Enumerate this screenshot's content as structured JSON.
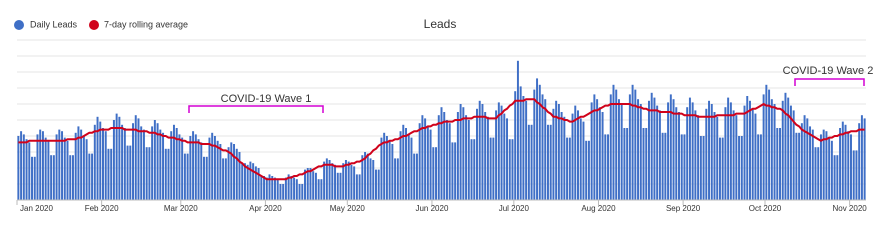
{
  "chart_data": {
    "type": "bar_line",
    "title": "Leads",
    "xticks": [
      {
        "value": 0,
        "label": "Jan 2020"
      },
      {
        "value": 31,
        "label": "Feb 2020"
      },
      {
        "value": 60,
        "label": "Mar 2020"
      },
      {
        "value": 91,
        "label": "Apr 2020"
      },
      {
        "value": 121,
        "label": "May 2020"
      },
      {
        "value": 152,
        "label": "Jun 2020"
      },
      {
        "value": 182,
        "label": "Jul 2020"
      },
      {
        "value": 213,
        "label": "Aug 2020"
      },
      {
        "value": 244,
        "label": "Sep 2020"
      },
      {
        "value": 274,
        "label": "Oct 2020"
      },
      {
        "value": 305,
        "label": "Nov 2020"
      }
    ],
    "ylim": [
      0,
      100
    ],
    "grid_values": [
      10,
      20,
      30,
      40,
      50,
      60,
      70,
      80,
      90,
      100
    ],
    "grid": true,
    "series": [
      {
        "name": "Daily Leads",
        "type": "bar",
        "color": "#3f6fc6",
        "values": [
          40,
          43,
          41,
          38,
          36,
          27,
          27,
          41,
          44,
          43,
          39,
          37,
          28,
          28,
          41,
          44,
          43,
          39,
          37,
          28,
          28,
          42,
          46,
          44,
          40,
          38,
          29,
          29,
          47,
          52,
          49,
          45,
          43,
          32,
          32,
          50,
          54,
          52,
          47,
          45,
          34,
          34,
          48,
          53,
          51,
          46,
          44,
          33,
          33,
          46,
          50,
          48,
          44,
          42,
          32,
          32,
          43,
          47,
          45,
          41,
          39,
          29,
          29,
          40,
          43,
          41,
          38,
          36,
          27,
          27,
          39,
          42,
          40,
          37,
          35,
          26,
          26,
          33,
          36,
          35,
          32,
          30,
          23,
          23,
          22,
          24,
          23,
          21,
          20,
          15,
          15,
          14,
          16,
          15,
          14,
          13,
          10,
          10,
          14,
          16,
          15,
          14,
          13,
          10,
          10,
          19,
          20,
          20,
          18,
          17,
          13,
          13,
          24,
          26,
          25,
          23,
          22,
          17,
          17,
          23,
          25,
          24,
          22,
          21,
          16,
          16,
          28,
          30,
          29,
          26,
          25,
          19,
          19,
          39,
          42,
          40,
          37,
          35,
          26,
          26,
          43,
          47,
          45,
          41,
          39,
          29,
          29,
          48,
          53,
          51,
          46,
          44,
          33,
          33,
          53,
          58,
          55,
          50,
          48,
          36,
          36,
          55,
          60,
          58,
          53,
          50,
          38,
          38,
          57,
          62,
          60,
          55,
          52,
          39,
          39,
          56,
          61,
          59,
          54,
          51,
          38,
          38,
          68,
          87,
          71,
          65,
          62,
          47,
          47,
          69,
          76,
          72,
          66,
          63,
          47,
          47,
          57,
          62,
          60,
          55,
          52,
          39,
          39,
          54,
          59,
          56,
          51,
          49,
          37,
          37,
          61,
          66,
          63,
          58,
          55,
          41,
          41,
          66,
          72,
          69,
          63,
          60,
          45,
          45,
          66,
          72,
          69,
          63,
          60,
          45,
          45,
          62,
          67,
          64,
          59,
          56,
          42,
          42,
          61,
          66,
          63,
          58,
          55,
          41,
          41,
          58,
          64,
          61,
          56,
          53,
          40,
          40,
          57,
          62,
          60,
          55,
          52,
          39,
          39,
          58,
          64,
          61,
          56,
          53,
          40,
          40,
          59,
          65,
          62,
          57,
          54,
          41,
          41,
          66,
          72,
          69,
          63,
          60,
          45,
          45,
          62,
          67,
          64,
          59,
          56,
          42,
          42,
          48,
          53,
          51,
          46,
          44,
          33,
          33,
          41,
          44,
          43,
          39,
          37,
          28,
          28,
          45,
          49,
          47,
          43,
          41,
          31,
          31,
          48,
          53,
          51
        ]
      },
      {
        "name": "7-day rolling average",
        "type": "line",
        "color": "#d0021b",
        "values": [
          36,
          36,
          36,
          36,
          37,
          37,
          37,
          37,
          37,
          37,
          37,
          37,
          37,
          37,
          37,
          37,
          37,
          37,
          38,
          38,
          38,
          38,
          39,
          39,
          40,
          41,
          42,
          42,
          43,
          43,
          44,
          44,
          44,
          44,
          45,
          45,
          45,
          45,
          45,
          44,
          44,
          44,
          44,
          44,
          43,
          43,
          43,
          43,
          42,
          42,
          42,
          41,
          41,
          40,
          40,
          39,
          39,
          39,
          38,
          38,
          37,
          37,
          36,
          36,
          36,
          36,
          36,
          35,
          35,
          35,
          35,
          34,
          34,
          33,
          32,
          31,
          31,
          30,
          29,
          27,
          26,
          24,
          23,
          21,
          20,
          19,
          18,
          17,
          16,
          15,
          14,
          13,
          13,
          13,
          13,
          13,
          13,
          13,
          13,
          14,
          14,
          15,
          15,
          16,
          16,
          17,
          18,
          18,
          19,
          20,
          21,
          21,
          22,
          22,
          22,
          22,
          21,
          21,
          21,
          21,
          22,
          22,
          23,
          23,
          24,
          24,
          25,
          26,
          28,
          29,
          31,
          32,
          34,
          35,
          36,
          36,
          37,
          37,
          38,
          38,
          39,
          40,
          40,
          41,
          42,
          43,
          43,
          44,
          45,
          45,
          46,
          46,
          47,
          47,
          48,
          48,
          49,
          49,
          49,
          49,
          50,
          50,
          50,
          51,
          51,
          51,
          51,
          52,
          52,
          52,
          52,
          52,
          51,
          51,
          51,
          51,
          53,
          54,
          56,
          57,
          59,
          60,
          62,
          62,
          62,
          62,
          63,
          63,
          63,
          63,
          61,
          60,
          58,
          57,
          55,
          54,
          52,
          52,
          51,
          51,
          50,
          50,
          49,
          49,
          50,
          51,
          52,
          52,
          53,
          54,
          55,
          56,
          56,
          57,
          58,
          59,
          59,
          60,
          60,
          60,
          60,
          60,
          60,
          60,
          60,
          59,
          59,
          58,
          58,
          57,
          57,
          56,
          56,
          56,
          56,
          55,
          55,
          55,
          55,
          55,
          54,
          54,
          54,
          54,
          53,
          53,
          53,
          53,
          53,
          52,
          52,
          52,
          52,
          52,
          52,
          52,
          53,
          53,
          53,
          53,
          53,
          53,
          53,
          54,
          54,
          54,
          54,
          55,
          56,
          57,
          57,
          58,
          59,
          60,
          59,
          59,
          58,
          58,
          57,
          57,
          56,
          54,
          53,
          51,
          49,
          47,
          46,
          44,
          43,
          42,
          41,
          40,
          39,
          38,
          37,
          38,
          38,
          39,
          39,
          40,
          40,
          41,
          41,
          42,
          42,
          43,
          43,
          43,
          44,
          44,
          44
        ]
      }
    ],
    "annotations": [
      "COVID-19 Wave 1",
      "COVID-19 Wave 2"
    ]
  }
}
